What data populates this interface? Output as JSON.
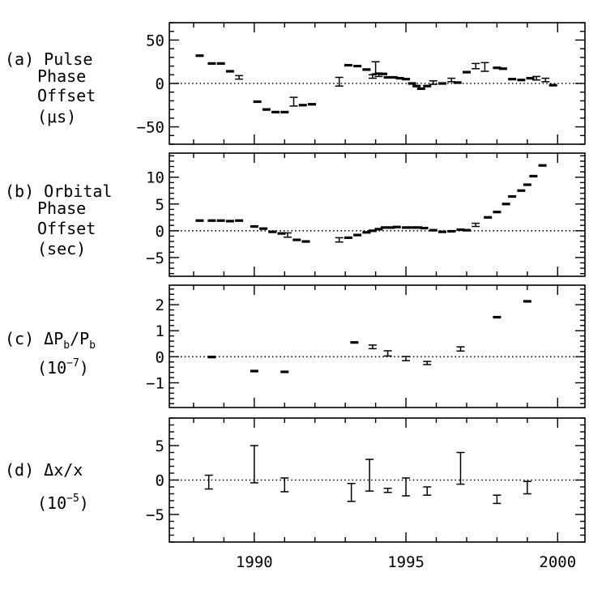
{
  "chart_data": [
    {
      "type": "scatter",
      "panel_id": "a",
      "title_lines": [
        "(a) Pulse",
        "Phase",
        "Offset",
        "(μs)"
      ],
      "ylabel": "Pulse Phase Offset (μs)",
      "xlim": [
        1987.2,
        2000.9
      ],
      "ylim": [
        -70,
        70
      ],
      "yticks": [
        50,
        0,
        -50
      ],
      "ytick_labels": [
        "50",
        "0",
        "−50"
      ],
      "zero_line": true,
      "points": [
        {
          "x": 1988.2,
          "y": 32,
          "e": 1
        },
        {
          "x": 1988.6,
          "y": 23,
          "e": 1
        },
        {
          "x": 1988.9,
          "y": 23,
          "e": 1
        },
        {
          "x": 1989.2,
          "y": 14,
          "e": 1
        },
        {
          "x": 1989.5,
          "y": 7,
          "e": 2
        },
        {
          "x": 1990.1,
          "y": -21,
          "e": 1
        },
        {
          "x": 1990.4,
          "y": -30,
          "e": 1
        },
        {
          "x": 1990.7,
          "y": -33,
          "e": 1
        },
        {
          "x": 1991.0,
          "y": -33,
          "e": 1
        },
        {
          "x": 1991.3,
          "y": -21,
          "e": 5
        },
        {
          "x": 1991.6,
          "y": -25,
          "e": 1
        },
        {
          "x": 1991.9,
          "y": -24,
          "e": 1
        },
        {
          "x": 1992.8,
          "y": 2,
          "e": 5
        },
        {
          "x": 1993.1,
          "y": 21,
          "e": 1
        },
        {
          "x": 1993.4,
          "y": 20,
          "e": 1
        },
        {
          "x": 1993.7,
          "y": 16,
          "e": 1
        },
        {
          "x": 1993.9,
          "y": 8,
          "e": 2
        },
        {
          "x": 1994.0,
          "y": 18,
          "e": 7
        },
        {
          "x": 1994.1,
          "y": 10,
          "e": 2
        },
        {
          "x": 1994.25,
          "y": 11,
          "e": 1
        },
        {
          "x": 1994.4,
          "y": 7,
          "e": 1
        },
        {
          "x": 1994.6,
          "y": 7,
          "e": 1
        },
        {
          "x": 1994.8,
          "y": 6,
          "e": 1
        },
        {
          "x": 1995.0,
          "y": 5,
          "e": 1
        },
        {
          "x": 1995.2,
          "y": 0,
          "e": 1
        },
        {
          "x": 1995.35,
          "y": -3,
          "e": 1
        },
        {
          "x": 1995.5,
          "y": -6,
          "e": 1
        },
        {
          "x": 1995.7,
          "y": -3,
          "e": 1
        },
        {
          "x": 1995.9,
          "y": 1,
          "e": 2
        },
        {
          "x": 1996.2,
          "y": 0,
          "e": 1
        },
        {
          "x": 1996.5,
          "y": 4,
          "e": 2
        },
        {
          "x": 1996.7,
          "y": 1,
          "e": 1
        },
        {
          "x": 1997.0,
          "y": 13,
          "e": 1
        },
        {
          "x": 1997.3,
          "y": 20,
          "e": 3
        },
        {
          "x": 1997.6,
          "y": 19,
          "e": 5
        },
        {
          "x": 1998.0,
          "y": 18,
          "e": 1
        },
        {
          "x": 1998.2,
          "y": 17,
          "e": 1
        },
        {
          "x": 1998.5,
          "y": 5,
          "e": 1
        },
        {
          "x": 1998.8,
          "y": 4,
          "e": 1
        },
        {
          "x": 1999.1,
          "y": 6,
          "e": 1
        },
        {
          "x": 1999.3,
          "y": 6,
          "e": 2
        },
        {
          "x": 1999.6,
          "y": 4,
          "e": 2
        },
        {
          "x": 1999.85,
          "y": -2,
          "e": 1
        }
      ]
    },
    {
      "type": "scatter",
      "panel_id": "b",
      "title_lines": [
        "(b) Orbital",
        "Phase",
        "Offset",
        "(sec)"
      ],
      "ylabel": "Orbital Phase Offset (sec)",
      "xlim": [
        1987.2,
        2000.9
      ],
      "ylim": [
        -8.5,
        14.5
      ],
      "yticks": [
        10,
        5,
        0,
        -5
      ],
      "ytick_labels": [
        "10",
        "5",
        "0",
        "−5"
      ],
      "zero_line": true,
      "points": [
        {
          "x": 1988.2,
          "y": 1.9,
          "e": 0.1
        },
        {
          "x": 1988.6,
          "y": 1.9,
          "e": 0.1
        },
        {
          "x": 1988.9,
          "y": 1.9,
          "e": 0.1
        },
        {
          "x": 1989.2,
          "y": 1.8,
          "e": 0.1
        },
        {
          "x": 1989.5,
          "y": 1.9,
          "e": 0.2
        },
        {
          "x": 1990.0,
          "y": 0.8,
          "e": 0.1
        },
        {
          "x": 1990.3,
          "y": 0.4,
          "e": 0.1
        },
        {
          "x": 1990.6,
          "y": -0.2,
          "e": 0.1
        },
        {
          "x": 1990.9,
          "y": -0.5,
          "e": 0.1
        },
        {
          "x": 1991.1,
          "y": -0.8,
          "e": 0.4
        },
        {
          "x": 1991.4,
          "y": -1.7,
          "e": 0.1
        },
        {
          "x": 1991.7,
          "y": -2.0,
          "e": 0.1
        },
        {
          "x": 1992.8,
          "y": -1.7,
          "e": 0.4
        },
        {
          "x": 1993.1,
          "y": -1.3,
          "e": 0.1
        },
        {
          "x": 1993.4,
          "y": -0.8,
          "e": 0.1
        },
        {
          "x": 1993.7,
          "y": -0.3,
          "e": 0.1
        },
        {
          "x": 1993.9,
          "y": 0.0,
          "e": 0.1
        },
        {
          "x": 1994.1,
          "y": 0.3,
          "e": 0.1
        },
        {
          "x": 1994.3,
          "y": 0.6,
          "e": 0.1
        },
        {
          "x": 1994.5,
          "y": 0.6,
          "e": 0.1
        },
        {
          "x": 1994.7,
          "y": 0.7,
          "e": 0.1
        },
        {
          "x": 1995.0,
          "y": 0.6,
          "e": 0.1
        },
        {
          "x": 1995.2,
          "y": 0.6,
          "e": 0.1
        },
        {
          "x": 1995.4,
          "y": 0.6,
          "e": 0.1
        },
        {
          "x": 1995.6,
          "y": 0.5,
          "e": 0.1
        },
        {
          "x": 1995.9,
          "y": 0.1,
          "e": 0.1
        },
        {
          "x": 1996.2,
          "y": -0.2,
          "e": 0.1
        },
        {
          "x": 1996.5,
          "y": -0.1,
          "e": 0.1
        },
        {
          "x": 1996.8,
          "y": 0.2,
          "e": 0.1
        },
        {
          "x": 1997.0,
          "y": 0.1,
          "e": 0.1
        },
        {
          "x": 1997.3,
          "y": 1.1,
          "e": 0.3
        },
        {
          "x": 1997.7,
          "y": 2.5,
          "e": 0.1
        },
        {
          "x": 1998.0,
          "y": 3.5,
          "e": 0.1
        },
        {
          "x": 1998.3,
          "y": 5.0,
          "e": 0.1
        },
        {
          "x": 1998.5,
          "y": 6.4,
          "e": 0.1
        },
        {
          "x": 1998.8,
          "y": 7.5,
          "e": 0.1
        },
        {
          "x": 1999.0,
          "y": 8.6,
          "e": 0.1
        },
        {
          "x": 1999.2,
          "y": 10.2,
          "e": 0.1
        },
        {
          "x": 1999.5,
          "y": 12.2,
          "e": 0.1
        }
      ]
    },
    {
      "type": "scatter",
      "panel_id": "c",
      "title_lines": [
        "(c) ΔP_b/P_b",
        "(10^-7)"
      ],
      "ylabel": "ΔPb/Pb (10^-7)",
      "xlim": [
        1987.2,
        2000.9
      ],
      "ylim": [
        -1.95,
        2.75
      ],
      "yticks": [
        2,
        1,
        0,
        -1
      ],
      "ytick_labels": [
        "2",
        "1",
        "0",
        "−1"
      ],
      "zero_line": true,
      "points": [
        {
          "x": 1988.6,
          "y": -0.01,
          "e": 0.02
        },
        {
          "x": 1990.0,
          "y": -0.55,
          "e": 0.03
        },
        {
          "x": 1991.0,
          "y": -0.58,
          "e": 0.02
        },
        {
          "x": 1993.3,
          "y": 0.55,
          "e": 0.05
        },
        {
          "x": 1993.9,
          "y": 0.38,
          "e": 0.07
        },
        {
          "x": 1994.4,
          "y": 0.13,
          "e": 0.1
        },
        {
          "x": 1995.0,
          "y": -0.07,
          "e": 0.08
        },
        {
          "x": 1995.7,
          "y": -0.24,
          "e": 0.06
        },
        {
          "x": 1996.8,
          "y": 0.3,
          "e": 0.08
        },
        {
          "x": 1998.0,
          "y": 1.52,
          "e": 0.05
        },
        {
          "x": 1999.0,
          "y": 2.13,
          "e": 0.05
        }
      ]
    },
    {
      "type": "scatter",
      "panel_id": "d",
      "title_lines": [
        "(d) Δx/x",
        "(10^-5)"
      ],
      "ylabel": "Δx/x (10^-5)",
      "xlabel": "",
      "xlim": [
        1987.2,
        2000.9
      ],
      "ylim": [
        -9,
        9
      ],
      "yticks": [
        5,
        0,
        -5
      ],
      "ytick_labels": [
        "5",
        "0",
        "−5"
      ],
      "xticks": [
        1990,
        1995,
        2000
      ],
      "xtick_labels": [
        "1990",
        "1995",
        "2000"
      ],
      "zero_line": true,
      "points": [
        {
          "x": 1988.5,
          "y": -0.3,
          "e": 1.0
        },
        {
          "x": 1990.0,
          "y": 2.3,
          "e": 2.7
        },
        {
          "x": 1991.0,
          "y": -0.7,
          "e": 1.0
        },
        {
          "x": 1993.2,
          "y": -1.8,
          "e": 1.3
        },
        {
          "x": 1993.8,
          "y": 0.7,
          "e": 2.3
        },
        {
          "x": 1994.4,
          "y": -1.5,
          "e": 0.3
        },
        {
          "x": 1995.0,
          "y": -1.0,
          "e": 1.3
        },
        {
          "x": 1995.7,
          "y": -1.6,
          "e": 0.6
        },
        {
          "x": 1996.8,
          "y": 1.7,
          "e": 2.3
        },
        {
          "x": 1998.0,
          "y": -2.8,
          "e": 0.6
        },
        {
          "x": 1999.0,
          "y": -1.1,
          "e": 0.9
        }
      ]
    }
  ]
}
